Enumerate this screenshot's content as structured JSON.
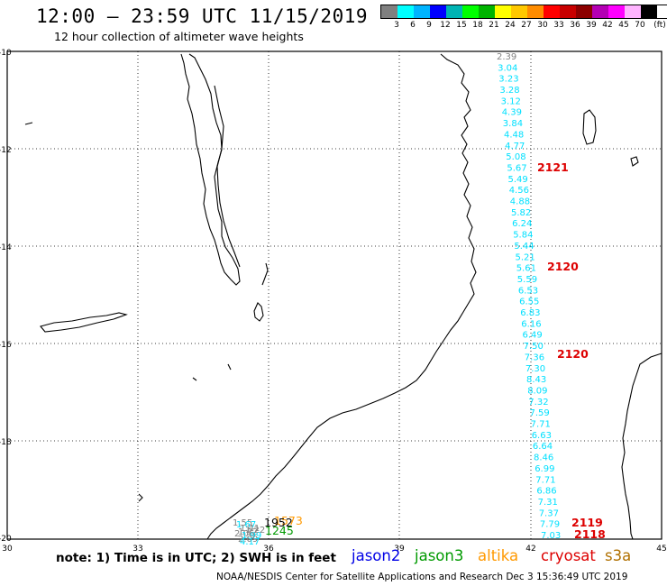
{
  "header": {
    "title": "12:00 – 23:59 UTC 11/15/2019",
    "subtitle": "12 hour collection of altimeter wave heights"
  },
  "color_scale": {
    "colors": [
      "#808080",
      "#00ffff",
      "#00b4ff",
      "#0000ff",
      "#00b4b4",
      "#00ff00",
      "#00b400",
      "#ffff00",
      "#ffc800",
      "#ff8c00",
      "#ff0000",
      "#c80000",
      "#8c0000",
      "#b400b4",
      "#ff00ff",
      "#ffb4ff",
      "#000000"
    ],
    "labels": [
      "3",
      "6",
      "9",
      "12",
      "15",
      "18",
      "21",
      "24",
      "27",
      "30",
      "33",
      "36",
      "39",
      "42",
      "45",
      "70",
      "(ft)"
    ]
  },
  "map": {
    "lat_ticks": [
      "-10",
      "-12",
      "-14",
      "-16",
      "-18",
      "-20"
    ],
    "lon_ticks": [
      "30",
      "33",
      "36",
      "39",
      "42",
      "45"
    ],
    "track": {
      "color": "#00e0ff",
      "values": [
        "2.39",
        "3.04",
        "3.23",
        "3.28",
        "3.12",
        "4.39",
        "3.84",
        "4.48",
        "4.77",
        "5.08",
        "5.67",
        "5.49",
        "4.56",
        "4.88",
        "5.82",
        "6.24",
        "5.84",
        "5.44",
        "5.21",
        "5.61",
        "5.59",
        "6.53",
        "6.55",
        "6.83",
        "6.16",
        "6.49",
        "7.50",
        "7.36",
        "7.30",
        "8.43",
        "8.09",
        "7.32",
        "7.59",
        "7.71",
        "6.63",
        "6.64",
        "8.46",
        "6.99",
        "7.71",
        "6.86",
        "7.31",
        "7.37",
        "7.79",
        "7.03"
      ]
    },
    "pass_labels": [
      "2121",
      "2120",
      "2120",
      "2119",
      "2118"
    ],
    "cluster": {
      "grey": [
        "1.55",
        "1.41",
        "1.32",
        "1.22",
        "2.06",
        "2.09"
      ],
      "cyan": [
        "1.67",
        "1.99",
        "4.17"
      ],
      "orange": "1573",
      "black": "1952",
      "green": "1245"
    }
  },
  "footer": {
    "note": "note:  1) Time is in UTC;  2) SWH is in feet",
    "credit": "NOAA/NESDIS Center for Satellite Applications and Research    Dec  3 15:36:49 UTC 2019"
  },
  "legend": [
    {
      "label": "jason2",
      "color": "#0000e6"
    },
    {
      "label": "jason3",
      "color": "#009a00"
    },
    {
      "label": "altika",
      "color": "#ff9900"
    },
    {
      "label": "cryosat",
      "color": "#dd0000"
    },
    {
      "label": "s3a",
      "color": "#b07000"
    }
  ]
}
